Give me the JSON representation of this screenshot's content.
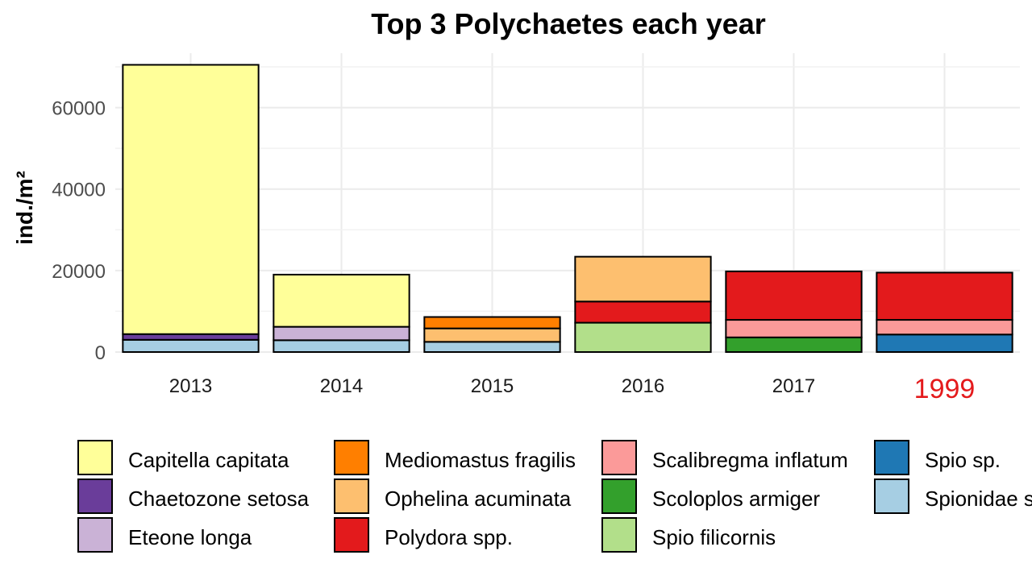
{
  "chart_data": {
    "type": "bar",
    "stacked": true,
    "title": "Top 3 Polychaetes each year",
    "xlabel": "",
    "ylabel": "ind./m²",
    "ylim": [
      0,
      70000
    ],
    "yticks": [
      0,
      20000,
      40000,
      60000
    ],
    "grid": true,
    "legend_position": "bottom",
    "categories": [
      "2013",
      "2014",
      "2015",
      "2016",
      "2017",
      "1999"
    ],
    "highlight_category": "1999",
    "highlight_color": "#e41a1c",
    "stacks": [
      [
        {
          "species": "Spionidae sp.",
          "value": 3000
        },
        {
          "species": "Chaetozone setosa",
          "value": 1400
        },
        {
          "species": "Capitella capitata",
          "value": 66100
        }
      ],
      [
        {
          "species": "Spionidae sp.",
          "value": 2900
        },
        {
          "species": "Eteone longa",
          "value": 3300
        },
        {
          "species": "Capitella capitata",
          "value": 12800
        }
      ],
      [
        {
          "species": "Spionidae sp.",
          "value": 2500
        },
        {
          "species": "Ophelina acuminata",
          "value": 3300
        },
        {
          "species": "Mediomastus fragilis",
          "value": 2800
        }
      ],
      [
        {
          "species": "Spio filicornis",
          "value": 7200
        },
        {
          "species": "Polydora spp.",
          "value": 5200
        },
        {
          "species": "Ophelina acuminata",
          "value": 11000
        }
      ],
      [
        {
          "species": "Scoloplos armiger",
          "value": 3600
        },
        {
          "species": "Scalibregma inflatum",
          "value": 4300
        },
        {
          "species": "Polydora spp.",
          "value": 11900
        }
      ],
      [
        {
          "species": "Spio sp.",
          "value": 4300
        },
        {
          "species": "Scalibregma inflatum",
          "value": 3600
        },
        {
          "species": "Polydora spp.",
          "value": 11600
        }
      ]
    ],
    "legend": [
      {
        "name": "Capitella capitata",
        "color": "#ffff99"
      },
      {
        "name": "Chaetozone setosa",
        "color": "#6a3d9a"
      },
      {
        "name": "Eteone longa",
        "color": "#cab2d6"
      },
      {
        "name": "Mediomastus fragilis",
        "color": "#ff7f00"
      },
      {
        "name": "Ophelina acuminata",
        "color": "#fdbf6f"
      },
      {
        "name": "Polydora spp.",
        "color": "#e31a1c"
      },
      {
        "name": "Scalibregma inflatum",
        "color": "#fb9a99"
      },
      {
        "name": "Scoloplos armiger",
        "color": "#33a02c"
      },
      {
        "name": "Spio filicornis",
        "color": "#b2df8a"
      },
      {
        "name": "Spio sp.",
        "color": "#1f78b4"
      },
      {
        "name": "Spionidae sp.",
        "color": "#a6cee3"
      }
    ]
  }
}
